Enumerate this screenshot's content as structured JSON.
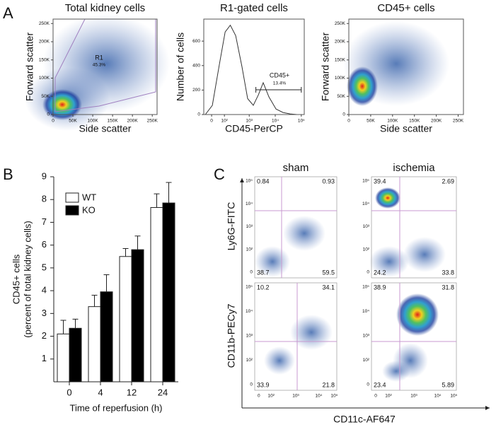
{
  "panel_labels": [
    "A",
    "B",
    "C"
  ],
  "chart_data": [
    {
      "type": "density",
      "title": "Total kidney cells",
      "xlabel": "Side scatter",
      "ylabel": "Forward scatter",
      "xlim": [
        0,
        262144
      ],
      "xticks": [
        0,
        {
          "value": 50000,
          "label": "50K"
        },
        {
          "value": 100000,
          "label": "100K"
        },
        {
          "value": 150000,
          "label": "150K"
        },
        {
          "value": 200000,
          "label": "200K"
        },
        {
          "value": 250000,
          "label": "250K"
        }
      ],
      "ylim": [
        0,
        262144
      ],
      "yticks": [
        0,
        {
          "value": 50000,
          "label": "50K"
        },
        {
          "value": 100000,
          "label": "100K"
        },
        {
          "value": 150000,
          "label": "150K"
        },
        {
          "value": 200000,
          "label": "200K"
        },
        {
          "value": 250000,
          "label": "250K"
        }
      ],
      "annotations": [
        "R1",
        "45.3%"
      ]
    },
    {
      "type": "line",
      "title": "R1-gated cells",
      "xlabel": "CD45-PerCP",
      "ylabel": "Number of cells",
      "xscale": "biexponential",
      "x": [
        -42,
        4.5,
        54,
        108,
        181,
        298,
        527,
        872,
        1440,
        2240,
        3450,
        5680,
        10700,
        19900,
        37300,
        69000
      ],
      "values": [
        0,
        75,
        415,
        675,
        730,
        645,
        390,
        130,
        75,
        160,
        260,
        145,
        45,
        17,
        5,
        0
      ],
      "color": "#333333",
      "xlim": [
        -54,
        130000
      ],
      "xticks": [
        0,
        {
          "value": 100,
          "label": "10²"
        },
        {
          "value": 1000,
          "label": "10³"
        },
        {
          "value": 10000,
          "label": "10⁴"
        },
        {
          "value": 100000,
          "label": "10⁵"
        }
      ],
      "ylim": [
        0,
        780
      ],
      "yticks": [
        0,
        200,
        400,
        600
      ],
      "gate": [
        1800,
        100000
      ],
      "annotations": [
        "CD45+",
        "13.4%"
      ]
    },
    {
      "type": "density",
      "title": "CD45+ cells",
      "xlabel": "Side scatter",
      "ylabel": "Forward scatter",
      "xlim": [
        0,
        262144
      ],
      "xticks": [
        0,
        {
          "value": 50000,
          "label": "50K"
        },
        {
          "value": 100000,
          "label": "100K"
        },
        {
          "value": 150000,
          "label": "150K"
        },
        {
          "value": 200000,
          "label": "200K"
        },
        {
          "value": 250000,
          "label": "250K"
        }
      ],
      "ylim": [
        0,
        262144
      ],
      "yticks": [
        0,
        {
          "value": 50000,
          "label": "50K"
        },
        {
          "value": 100000,
          "label": "100K"
        },
        {
          "value": 150000,
          "label": "150K"
        },
        {
          "value": 200000,
          "label": "200K"
        },
        {
          "value": 250000,
          "label": "250K"
        }
      ],
      "annotations": []
    },
    {
      "type": "bar",
      "ylabel": [
        "CD45+ cells",
        "(percent of total kidney cells)"
      ],
      "xlabel": "Time of reperfusion (h)",
      "categories": [
        "0",
        "4",
        "12",
        "24"
      ],
      "series": [
        {
          "name": "WT",
          "color": "#ffffff",
          "values": [
            2.1,
            3.3,
            5.5,
            7.65
          ],
          "errors": [
            0.6,
            0.5,
            0.35,
            0.6
          ]
        },
        {
          "name": "KO",
          "color": "#000000",
          "values": [
            2.35,
            3.95,
            5.8,
            7.85
          ],
          "errors": [
            0.4,
            0.75,
            0.6,
            0.9
          ]
        }
      ],
      "ylim": [
        0,
        9
      ],
      "yticks": [
        1,
        2,
        3,
        4,
        5,
        6,
        7,
        8,
        9
      ],
      "legend": "upper-left"
    }
  ],
  "panel_c": {
    "columns": [
      "sham",
      "ischemia"
    ],
    "row_labels": [
      "Ly6G-FITC",
      "CD11b-PECy7"
    ],
    "xlabel": "CD11c-AF647",
    "yticks": [
      "10⁵",
      "10⁴",
      "10³",
      "10²",
      "0"
    ],
    "xticks": [
      "0",
      "10²",
      "10³",
      "10⁴",
      "10⁵"
    ],
    "quadrants": [
      [
        "0.84",
        "0.93",
        "38.7",
        "59.5"
      ],
      [
        "39.4",
        "2.69",
        "24.2",
        "33.8"
      ],
      [
        "10.2",
        "34.1",
        "33.9",
        "21.8"
      ],
      [
        "38.9",
        "31.8",
        "23.4",
        "5.89"
      ]
    ]
  }
}
